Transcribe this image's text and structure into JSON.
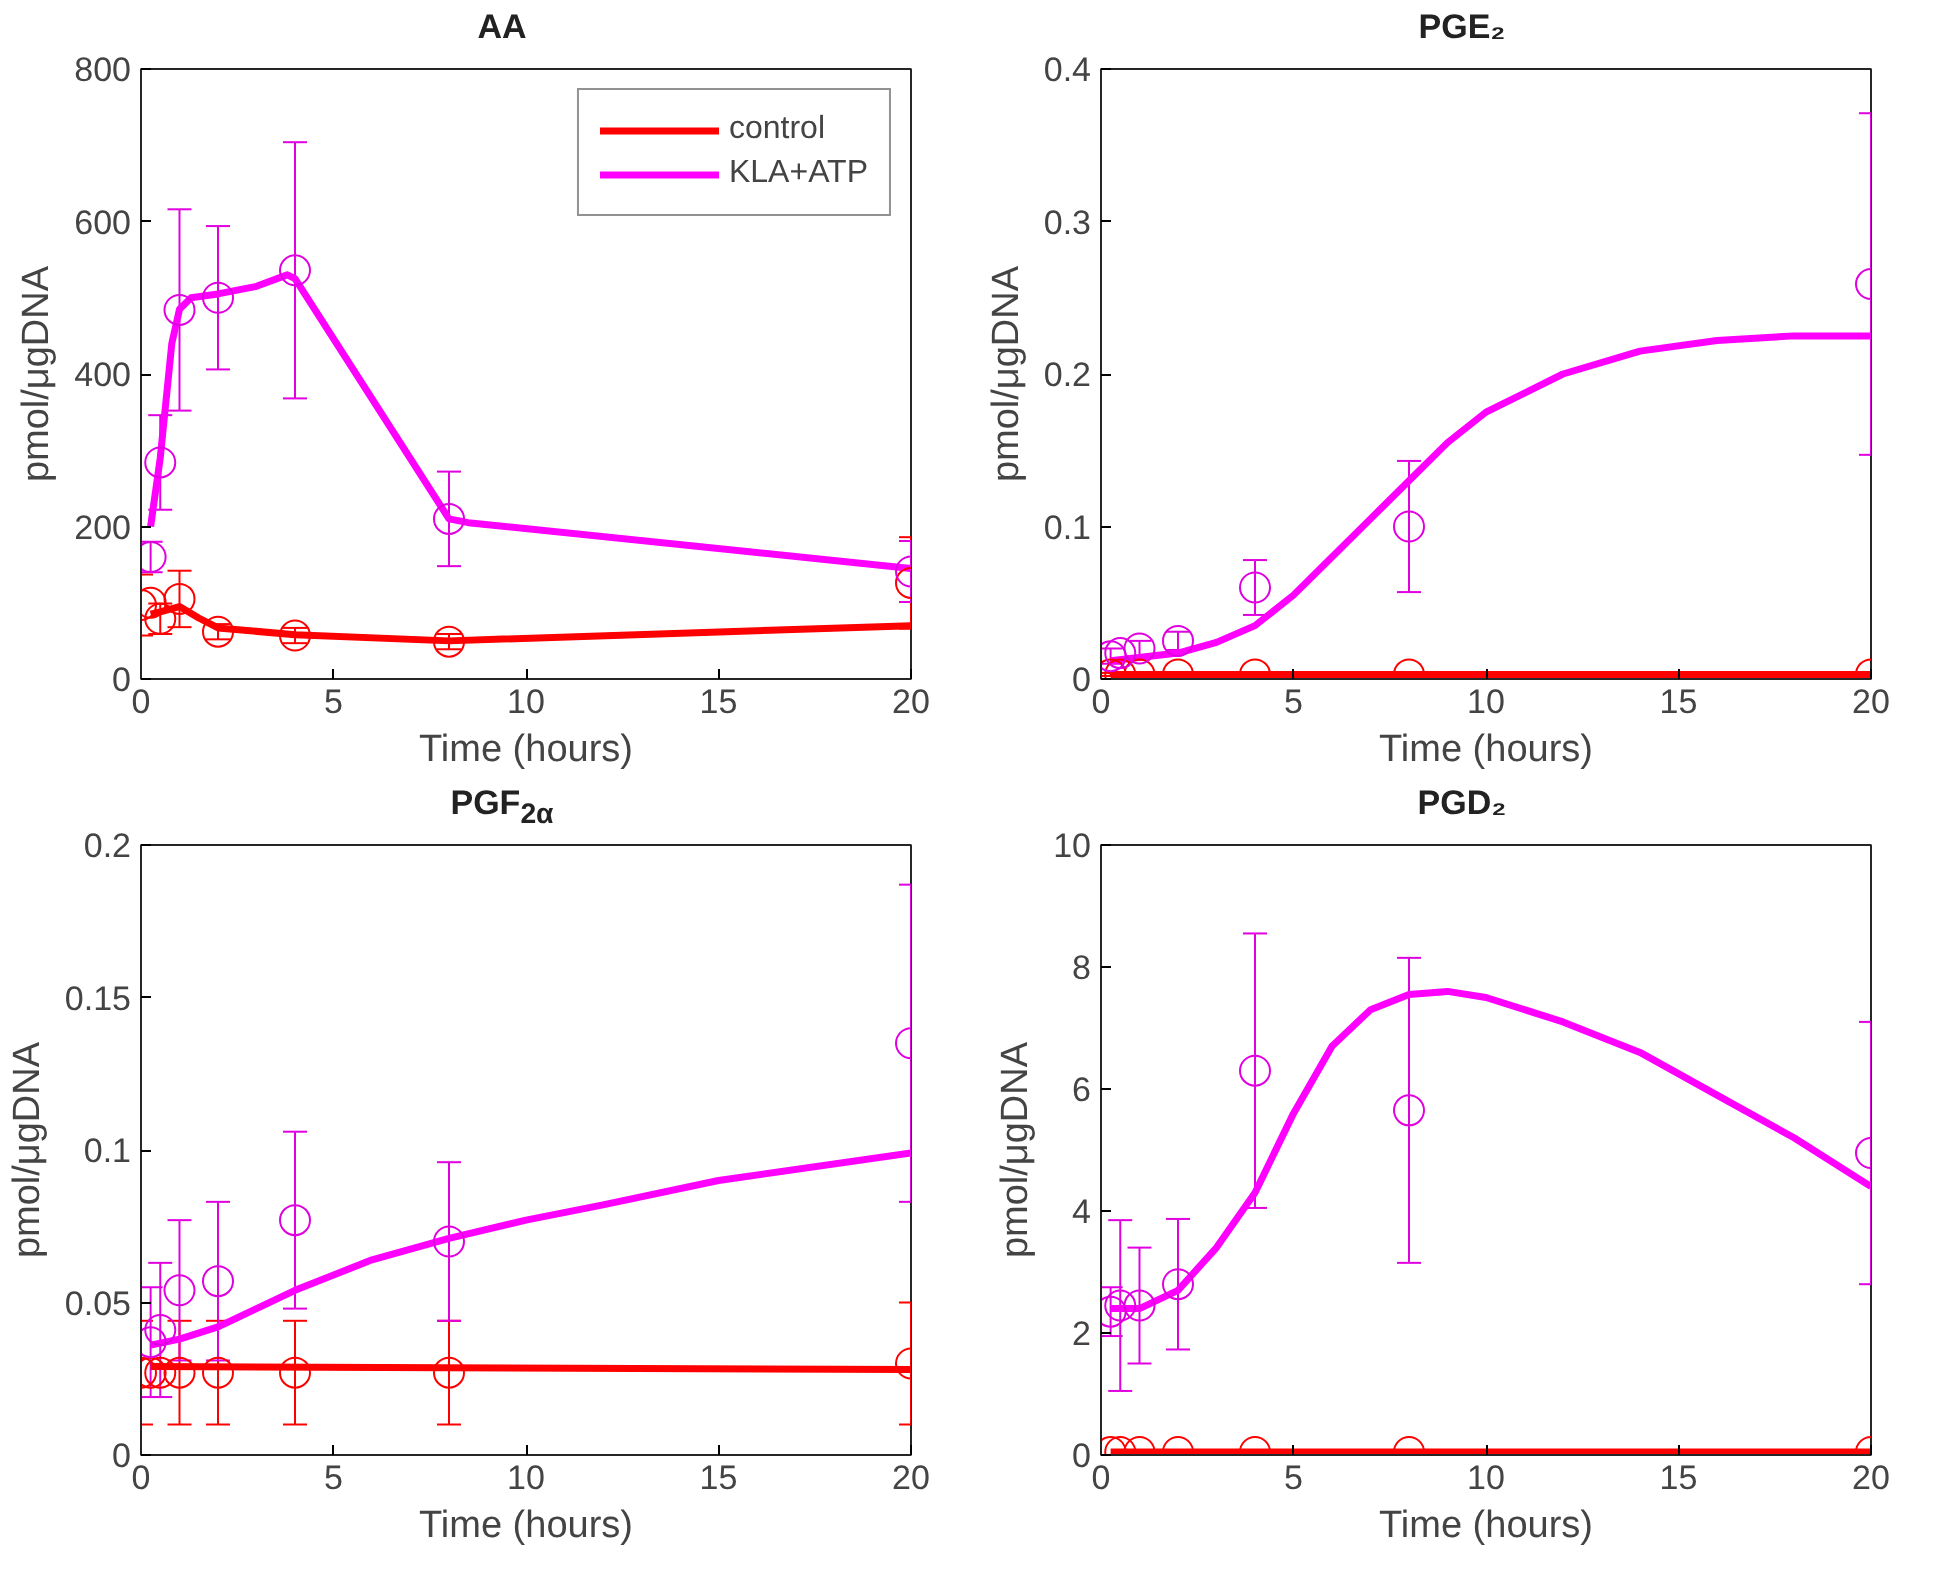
{
  "chart_data": [
    {
      "type": "line",
      "title": "AA",
      "xlabel": "Time (hours)",
      "ylabel": "pmol/μgDNA",
      "xlim": [
        0,
        20
      ],
      "ylim": [
        0,
        800
      ],
      "xticks": [
        0,
        5,
        10,
        15,
        20
      ],
      "yticks": [
        0,
        200,
        400,
        600,
        800
      ],
      "grid": false,
      "legend": "top right",
      "series": [
        {
          "name": "control",
          "color": "#ff0000",
          "marker": "none",
          "x": [
            0.25,
            0.5,
            1,
            1.5,
            2,
            4,
            8,
            20
          ],
          "values": [
            85,
            88,
            95,
            80,
            67,
            58,
            50,
            70
          ]
        },
        {
          "name": "KLA+ATP",
          "color": "#ff00ff",
          "marker": "none",
          "x": [
            0.25,
            0.5,
            0.8,
            1,
            1.3,
            2,
            3,
            3.8,
            4,
            8,
            8.5,
            20
          ],
          "values": [
            200,
            290,
            440,
            485,
            500,
            505,
            515,
            530,
            525,
            210,
            205,
            145
          ]
        },
        {
          "type": "scatter",
          "color": "#ff0000",
          "marker": "circle",
          "x": [
            0,
            0.25,
            0.5,
            1,
            2,
            4,
            8,
            20
          ],
          "values": [
            97,
            100,
            79,
            105,
            62,
            57,
            49,
            126
          ],
          "errors": [
            40,
            null,
            20,
            37,
            10,
            10,
            10,
            60
          ]
        },
        {
          "type": "scatter",
          "color": "#e000e0",
          "marker": "circle",
          "x": [
            0.25,
            0.5,
            1,
            2,
            4,
            8,
            20
          ],
          "values": [
            160,
            284,
            484,
            500,
            536,
            210,
            141
          ],
          "errors": [
            20,
            62,
            132,
            94,
            168,
            62,
            40
          ]
        }
      ]
    },
    {
      "type": "line",
      "title": "PGE₂",
      "xlabel": "Time (hours)",
      "ylabel": "pmol/μgDNA",
      "xlim": [
        0,
        20
      ],
      "ylim": [
        0,
        0.4
      ],
      "xticks": [
        0,
        5,
        10,
        15,
        20
      ],
      "yticks": [
        0,
        0.1,
        0.2,
        0.3,
        0.4
      ],
      "grid": false,
      "series": [
        {
          "color": "#ff0000",
          "marker": "none",
          "x": [
            0.25,
            20
          ],
          "values": [
            0.003,
            0.003
          ]
        },
        {
          "color": "#ff00ff",
          "marker": "none",
          "x": [
            0.25,
            2,
            3,
            4,
            5,
            6,
            7,
            8,
            9,
            10,
            12,
            14,
            16,
            18,
            20
          ],
          "values": [
            0.012,
            0.017,
            0.024,
            0.035,
            0.055,
            0.08,
            0.105,
            0.13,
            0.155,
            0.175,
            0.2,
            0.215,
            0.222,
            0.225,
            0.225
          ]
        },
        {
          "type": "scatter",
          "color": "#ff0000",
          "marker": "circle",
          "x": [
            0.25,
            0.5,
            1,
            2,
            4,
            8,
            20
          ],
          "values": [
            0.003,
            0.003,
            0.003,
            0.003,
            0.003,
            0.003,
            0.003
          ],
          "errors": [
            0.001,
            0.001,
            0.001,
            0.001,
            0.001,
            0.001,
            0.001
          ]
        },
        {
          "type": "scatter",
          "color": "#e000e0",
          "marker": "circle",
          "x": [
            0.25,
            0.5,
            1,
            2,
            4,
            8,
            20
          ],
          "values": [
            0.015,
            0.017,
            0.02,
            0.025,
            0.06,
            0.1,
            0.259
          ],
          "errors": [
            0.005,
            null,
            0.005,
            0.006,
            0.018,
            0.043,
            0.112
          ]
        }
      ]
    },
    {
      "type": "line",
      "title": "PGF$_{2α}$",
      "xlabel": "Time (hours)",
      "ylabel": "pmol/μgDNA",
      "xlim": [
        0,
        20
      ],
      "ylim": [
        0,
        0.2
      ],
      "xticks": [
        0,
        5,
        10,
        15,
        20
      ],
      "yticks": [
        0,
        0.05,
        0.1,
        0.15,
        0.2
      ],
      "grid": false,
      "series": [
        {
          "color": "#ff0000",
          "marker": "none",
          "x": [
            0.25,
            20
          ],
          "values": [
            0.029,
            0.028
          ]
        },
        {
          "color": "#ff00ff",
          "marker": "none",
          "x": [
            0.25,
            1,
            2,
            3,
            4,
            6,
            8,
            10,
            12,
            15,
            20
          ],
          "values": [
            0.036,
            0.038,
            0.042,
            0.048,
            0.054,
            0.064,
            0.071,
            0.077,
            0.082,
            0.09,
            0.099
          ]
        },
        {
          "type": "scatter",
          "color": "#ff0000",
          "marker": "circle",
          "x": [
            0,
            0.25,
            0.5,
            1,
            2,
            4,
            8,
            20
          ],
          "values": [
            0.027,
            0.027,
            0.027,
            0.027,
            0.027,
            0.027,
            0.027,
            0.03
          ],
          "errors": [
            0.017,
            null,
            null,
            0.017,
            0.017,
            0.017,
            0.017,
            0.02
          ]
        },
        {
          "type": "scatter",
          "color": "#e000e0",
          "marker": "circle",
          "x": [
            0.25,
            0.5,
            1,
            2,
            4,
            8,
            20
          ],
          "values": [
            0.037,
            0.041,
            0.054,
            0.057,
            0.077,
            0.07,
            0.135
          ],
          "errors": [
            0.018,
            0.022,
            0.023,
            0.026,
            0.029,
            0.026,
            0.052
          ]
        }
      ]
    },
    {
      "type": "line",
      "title": "PGD₂",
      "xlabel": "Time (hours)",
      "ylabel": "pmol/μgDNA",
      "xlim": [
        0,
        20
      ],
      "ylim": [
        0,
        10
      ],
      "xticks": [
        0,
        5,
        10,
        15,
        20
      ],
      "yticks": [
        0,
        2,
        4,
        6,
        8,
        10
      ],
      "grid": false,
      "series": [
        {
          "color": "#ff0000",
          "marker": "none",
          "x": [
            0.25,
            20
          ],
          "values": [
            0.05,
            0.05
          ]
        },
        {
          "color": "#ff00ff",
          "marker": "none",
          "x": [
            0.25,
            1,
            2,
            3,
            4,
            5,
            6,
            7,
            8,
            9,
            10,
            12,
            14,
            16,
            18,
            20
          ],
          "values": [
            2.4,
            2.4,
            2.7,
            3.4,
            4.3,
            5.6,
            6.7,
            7.3,
            7.55,
            7.6,
            7.5,
            7.1,
            6.6,
            5.9,
            5.2,
            4.4
          ]
        },
        {
          "type": "scatter",
          "color": "#ff0000",
          "marker": "circle",
          "x": [
            0.25,
            0.5,
            1,
            2,
            4,
            8,
            20
          ],
          "values": [
            0.05,
            0.05,
            0.05,
            0.05,
            0.05,
            0.05,
            0.05
          ]
        },
        {
          "type": "scatter",
          "color": "#e000e0",
          "marker": "circle",
          "x": [
            0.25,
            0.5,
            1,
            2,
            4,
            8,
            20
          ],
          "values": [
            2.35,
            2.45,
            2.45,
            2.8,
            6.3,
            5.65,
            4.95
          ],
          "errors": [
            0.4,
            1.4,
            0.95,
            1.07,
            2.25,
            2.5,
            2.15
          ]
        }
      ]
    }
  ]
}
